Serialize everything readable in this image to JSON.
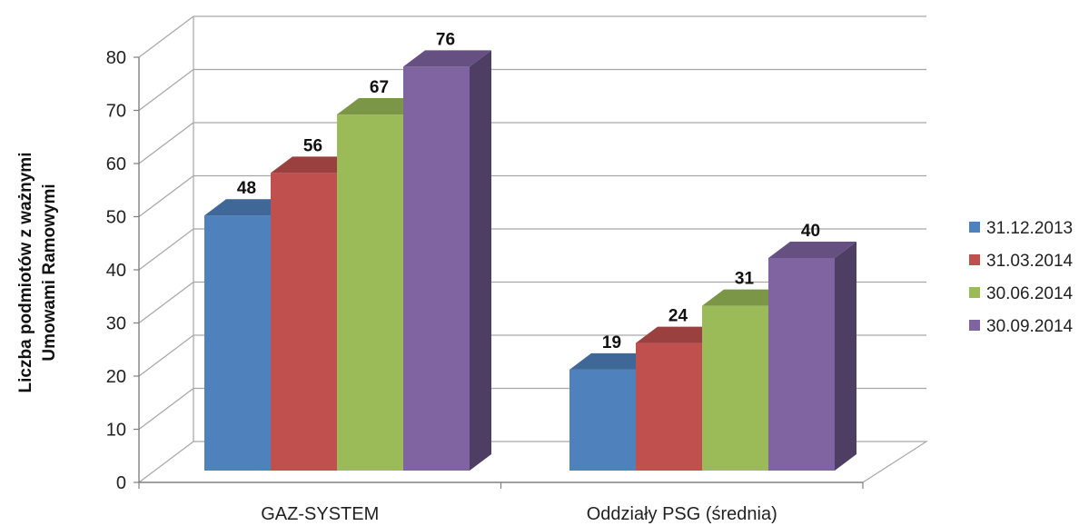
{
  "chart_data": {
    "type": "bar",
    "ylabel_lines": [
      "Liczba podmiotów  z ważnymi",
      "Umowami Ramowymi"
    ],
    "xlabel": "",
    "categories": [
      "GAZ-SYSTEM",
      "Oddziały PSG (średnia)"
    ],
    "ylim": [
      0,
      80
    ],
    "yticks": [
      "0",
      "10",
      "20",
      "30",
      "40",
      "50",
      "60",
      "70",
      "80"
    ],
    "series": [
      {
        "name": "31.12.2013",
        "color": "#4F81BD",
        "values": [
          48,
          19
        ]
      },
      {
        "name": "31.03.2014",
        "color": "#C0504D",
        "values": [
          56,
          24
        ]
      },
      {
        "name": "30.06.2014",
        "color": "#9BBB59",
        "values": [
          67,
          31
        ]
      },
      {
        "name": "30.09.2014",
        "color": "#8064A2",
        "values": [
          76,
          40
        ]
      }
    ],
    "grid": true,
    "legend_position": "right",
    "projection": "3d-column"
  }
}
